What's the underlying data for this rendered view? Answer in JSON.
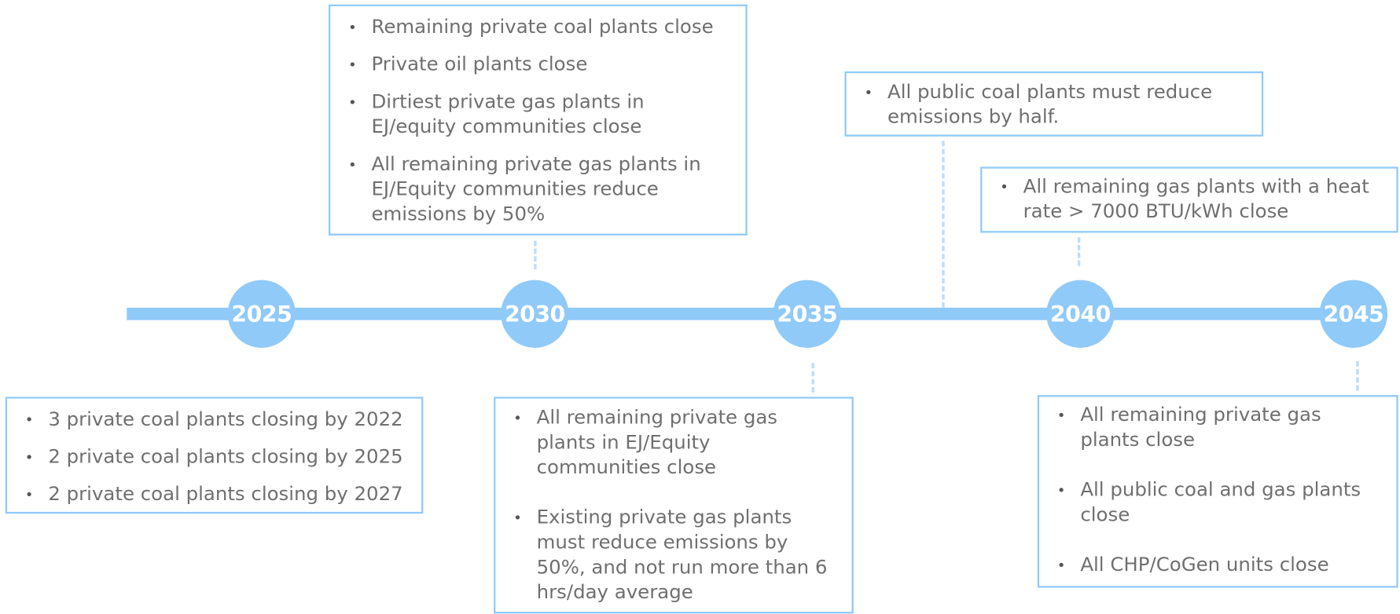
{
  "years": [
    "2025",
    "2030",
    "2035",
    "2040",
    "2045"
  ],
  "boxes": [
    {
      "items": [
        "3 private coal plants closing by 2022",
        "2 private coal plants closing by 2025",
        "2 private coal plants closing by 2027"
      ]
    },
    {
      "items": [
        "Remaining private coal plants close",
        "Private oil plants close",
        "Dirtiest private gas plants in EJ/equity communities close",
        "All remaining private gas plants in EJ/Equity communities reduce emissions by 50%"
      ]
    },
    {
      "items": [
        "All remaining private gas plants in EJ/Equity communities close",
        "Existing private gas plants must reduce emissions by 50%, and not run more than 6 hrs/day average"
      ]
    },
    {
      "items": [
        "All public coal plants must reduce emissions by half."
      ]
    },
    {
      "items": [
        "All remaining gas plants with a heat rate > 7000 BTU/kWh close"
      ]
    },
    {
      "items": [
        "All remaining private gas plants close",
        "All public coal and gas plants close",
        "All CHP/CoGen units close"
      ]
    }
  ]
}
